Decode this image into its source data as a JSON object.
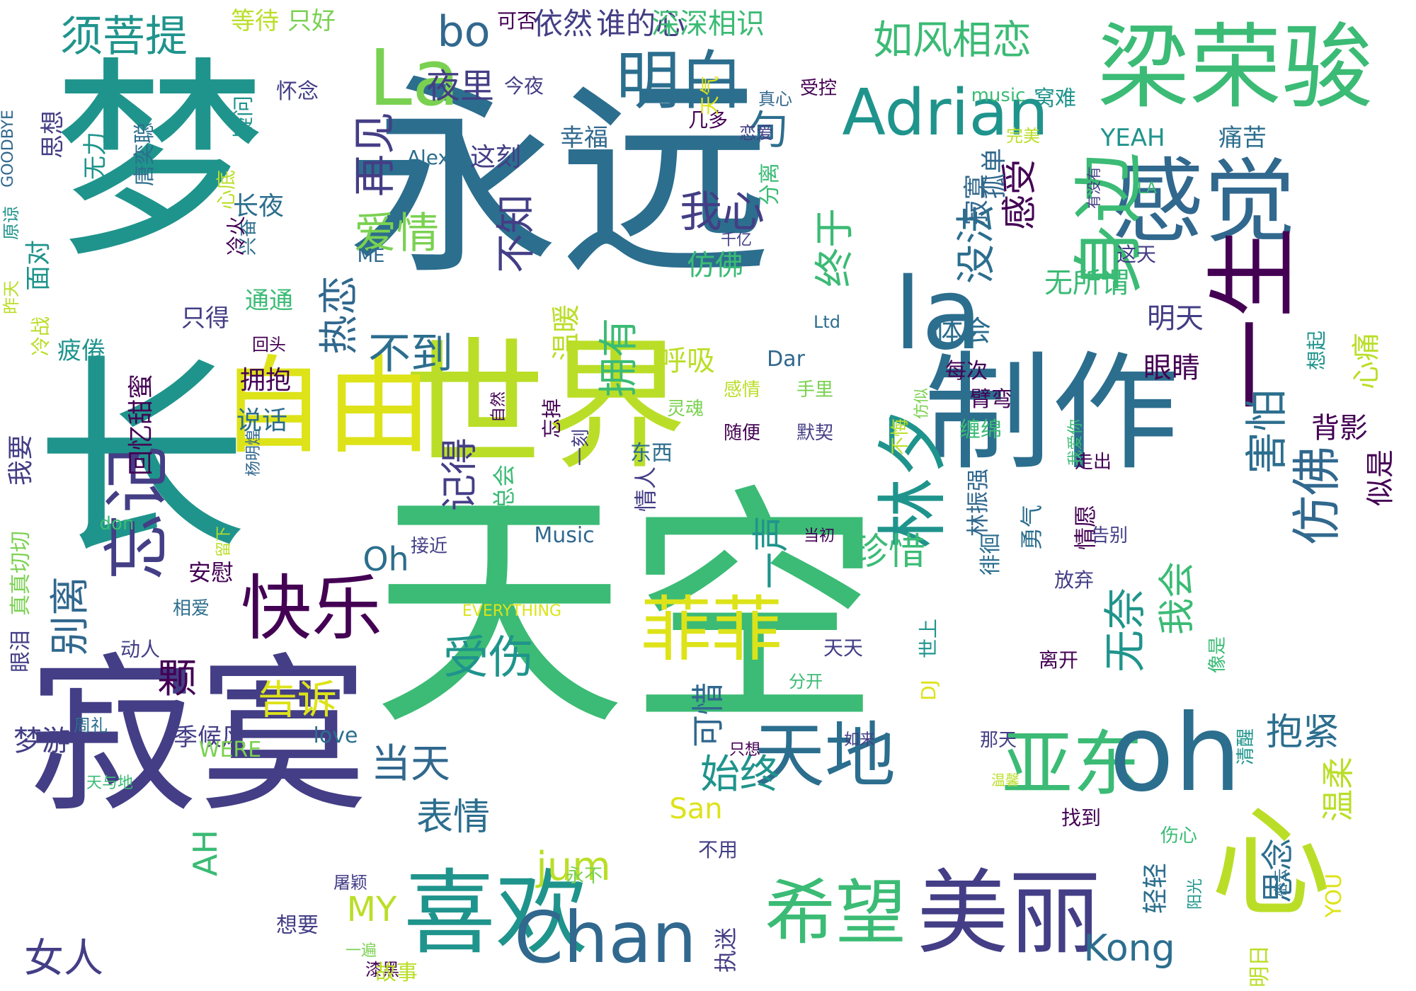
{
  "words": [
    {
      "text": "永远",
      "color": "#2c6e8e",
      "rot": "h"
    },
    {
      "text": "天空",
      "color": "#3bbb75",
      "rot": "h"
    },
    {
      "text": "世界",
      "color": "#bade28",
      "rot": "h"
    },
    {
      "text": "寂寞",
      "color": "#433e85",
      "rot": "h"
    },
    {
      "text": "梦",
      "color": "#1f948c",
      "rot": "h"
    },
    {
      "text": "长",
      "color": "#1f948c",
      "rot": "h"
    },
    {
      "text": "制作",
      "color": "#2c6e8e",
      "rot": "h"
    },
    {
      "text": "梁荣骏",
      "color": "#3bbb75",
      "rot": "h"
    },
    {
      "text": "感觉",
      "color": "#31688e",
      "rot": "h"
    },
    {
      "text": "自由",
      "color": "#dde318",
      "rot": "h"
    },
    {
      "text": "喜欢",
      "color": "#1f948c",
      "rot": "h"
    },
    {
      "text": "美丽",
      "color": "#433e85",
      "rot": "h"
    },
    {
      "text": "希望",
      "color": "#3bbb75",
      "rot": "h"
    },
    {
      "text": "天地",
      "color": "#2c6e8e",
      "rot": "h"
    },
    {
      "text": "亚东",
      "color": "#3bbb75",
      "rot": "h"
    },
    {
      "text": "Chan",
      "color": "#31688e",
      "rot": "h"
    },
    {
      "text": "快乐",
      "color": "#440154",
      "rot": "h"
    },
    {
      "text": "菲菲",
      "color": "#dde318",
      "rot": "h"
    },
    {
      "text": "Adrian",
      "color": "#1f948c",
      "rot": "h"
    },
    {
      "text": "La",
      "color": "#7ad151",
      "rot": "h"
    },
    {
      "text": "la",
      "color": "#2c6e8e",
      "rot": "h"
    },
    {
      "text": "oh",
      "color": "#2c6e8e",
      "rot": "h"
    },
    {
      "text": "心",
      "color": "#bade28",
      "rot": "h"
    },
    {
      "text": "一生",
      "color": "#440154",
      "rot": "v"
    },
    {
      "text": "身边",
      "color": "#3bbb75",
      "rot": "v"
    },
    {
      "text": "林夕",
      "color": "#1f948c",
      "rot": "v"
    },
    {
      "text": "忘记",
      "color": "#433e85",
      "rot": "v"
    },
    {
      "text": "明白",
      "color": "#2c6e8e",
      "rot": "h"
    },
    {
      "text": "如风相恋",
      "color": "#3bbb75",
      "rot": "h"
    },
    {
      "text": "须菩提",
      "color": "#1f948c",
      "rot": "h"
    },
    {
      "text": "bo",
      "color": "#31688e",
      "rot": "h"
    },
    {
      "text": "夜里",
      "color": "#433e85",
      "rot": "h"
    },
    {
      "text": "依然",
      "color": "#433e85",
      "rot": "h"
    },
    {
      "text": "谁的心",
      "color": "#433e85",
      "rot": "h"
    },
    {
      "text": "深深相识",
      "color": "#3bbb75",
      "rot": "h"
    },
    {
      "text": "等待",
      "color": "#bade28",
      "rot": "h"
    },
    {
      "text": "只好",
      "color": "#7ad151",
      "rot": "h"
    },
    {
      "text": "可否",
      "color": "#440154",
      "rot": "h"
    },
    {
      "text": "再见",
      "color": "#433e85",
      "rot": "v"
    },
    {
      "text": "我心",
      "color": "#433e85",
      "rot": "h"
    },
    {
      "text": "爱情",
      "color": "#7ad151",
      "rot": "h"
    },
    {
      "text": "不知",
      "color": "#433e85",
      "rot": "v"
    },
    {
      "text": "热恋",
      "color": "#31688e",
      "rot": "v"
    },
    {
      "text": "不到",
      "color": "#2c6e8e",
      "rot": "h"
    },
    {
      "text": "终于",
      "color": "#3bbb75",
      "rot": "v"
    },
    {
      "text": "没法",
      "color": "#2c6e8e",
      "rot": "v"
    },
    {
      "text": "感受",
      "color": "#440154",
      "rot": "v"
    },
    {
      "text": "拥有",
      "color": "#3bbb75",
      "rot": "v"
    },
    {
      "text": "温暖",
      "color": "#bade28",
      "rot": "v"
    },
    {
      "text": "一声",
      "color": "#1f948c",
      "rot": "v"
    },
    {
      "text": "记得",
      "color": "#433e85",
      "rot": "v"
    },
    {
      "text": "珍惜",
      "color": "#3bbb75",
      "rot": "h"
    },
    {
      "text": "仿佛",
      "color": "#31688e",
      "rot": "v"
    },
    {
      "text": "害怕",
      "color": "#2c6e8e",
      "rot": "v"
    },
    {
      "text": "无奈",
      "color": "#1f948c",
      "rot": "v"
    },
    {
      "text": "我会",
      "color": "#3bbb75",
      "rot": "v"
    },
    {
      "text": "受伤",
      "color": "#1f948c",
      "rot": "h"
    },
    {
      "text": "告诉",
      "color": "#dde318",
      "rot": "h"
    },
    {
      "text": "别离",
      "color": "#31688e",
      "rot": "v"
    },
    {
      "text": "颗",
      "color": "#440154",
      "rot": "h"
    },
    {
      "text": "当天",
      "color": "#31688e",
      "rot": "h"
    },
    {
      "text": "始终",
      "color": "#1f948c",
      "rot": "h"
    },
    {
      "text": "可惜",
      "color": "#31688e",
      "rot": "v"
    },
    {
      "text": "表情",
      "color": "#2c6e8e",
      "rot": "h"
    },
    {
      "text": "抱紧",
      "color": "#2c6e8e",
      "rot": "h"
    },
    {
      "text": "温柔",
      "color": "#bade28",
      "rot": "v"
    },
    {
      "text": "思念",
      "color": "#2c6e8e",
      "rot": "v"
    },
    {
      "text": "女人",
      "color": "#433e85",
      "rot": "h"
    },
    {
      "text": "Kong",
      "color": "#2c6e8e",
      "rot": "h"
    },
    {
      "text": "MY",
      "color": "#bade28",
      "rot": "h"
    },
    {
      "text": "jum",
      "color": "#bade28",
      "rot": "h"
    },
    {
      "text": "AH",
      "color": "#3bbb75",
      "rot": "v"
    },
    {
      "text": "Oh",
      "color": "#2c6e8e",
      "rot": "h"
    },
    {
      "text": "Alex",
      "color": "#2c6e8e",
      "rot": "h"
    },
    {
      "text": "这刻",
      "color": "#433e85",
      "rot": "h"
    },
    {
      "text": "幸福",
      "color": "#31688e",
      "rot": "h"
    },
    {
      "text": "YEAH",
      "color": "#1f948c",
      "rot": "h"
    },
    {
      "text": "痛苦",
      "color": "#2c6e8e",
      "rot": "h"
    },
    {
      "text": "句",
      "color": "#2c6e8e",
      "rot": "h"
    },
    {
      "text": "孤单",
      "color": "#31688e",
      "rot": "v"
    },
    {
      "text": "寂寞2",
      "color": "#31688e",
      "rot": "v"
    },
    {
      "text": "体会",
      "color": "#2c6e8e",
      "rot": "h"
    },
    {
      "text": "眼睛",
      "color": "#440154",
      "rot": "h"
    },
    {
      "text": "心痛",
      "color": "#bade28",
      "rot": "v"
    },
    {
      "text": "背影",
      "color": "#440154",
      "rot": "h"
    },
    {
      "text": "似是",
      "color": "#440154",
      "rot": "v"
    },
    {
      "text": "想起",
      "color": "#1f948c",
      "rot": "v"
    },
    {
      "text": "明天",
      "color": "#433e85",
      "rot": "h"
    },
    {
      "text": "无所谓",
      "color": "#3bbb75",
      "rot": "h"
    },
    {
      "text": "这天",
      "color": "#433e85",
      "rot": "h"
    },
    {
      "text": "有没有",
      "color": "#433e85",
      "rot": "v"
    },
    {
      "text": "呼吸",
      "color": "#bade28",
      "rot": "h"
    },
    {
      "text": "仿佛2",
      "color": "#3bbb75",
      "rot": "h"
    },
    {
      "text": "拥抱",
      "color": "#440154",
      "rot": "h"
    },
    {
      "text": "回忆甜蜜",
      "color": "#440154",
      "rot": "v"
    },
    {
      "text": "说话",
      "color": "#2c6e8e",
      "rot": "h"
    },
    {
      "text": "我要",
      "color": "#433e85",
      "rot": "v"
    },
    {
      "text": "疲倦",
      "color": "#1f948c",
      "rot": "h"
    },
    {
      "text": "冷战",
      "color": "#bade28",
      "rot": "v"
    },
    {
      "text": "只得",
      "color": "#433e85",
      "rot": "h"
    },
    {
      "text": "通通",
      "color": "#3bbb75",
      "rot": "h"
    },
    {
      "text": "长夜",
      "color": "#2c6e8e",
      "rot": "h"
    },
    {
      "text": "面对",
      "color": "#1f948c",
      "rot": "v"
    },
    {
      "text": "疑问",
      "color": "#1f948c",
      "rot": "v"
    },
    {
      "text": "怀念",
      "color": "#433e85",
      "rot": "h"
    },
    {
      "text": "唐奕聪",
      "color": "#2c6e8e",
      "rot": "v"
    },
    {
      "text": "无力",
      "color": "#1f948c",
      "rot": "v"
    },
    {
      "text": "思想",
      "color": "#433e85",
      "rot": "v"
    },
    {
      "text": "GOODBYE",
      "color": "#31688e",
      "rot": "v"
    },
    {
      "text": "真心",
      "color": "#31688e",
      "rot": "h"
    },
    {
      "text": "完美",
      "color": "#bade28",
      "rot": "h"
    },
    {
      "text": "几多",
      "color": "#440154",
      "rot": "h"
    },
    {
      "text": "今夜",
      "color": "#433e85",
      "rot": "h"
    },
    {
      "text": "music",
      "color": "#3bbb75",
      "rot": "h"
    },
    {
      "text": "受控",
      "color": "#440154",
      "rot": "h"
    },
    {
      "text": "恋爱",
      "color": "#433e85",
      "rot": "h"
    },
    {
      "text": "窝难",
      "color": "#1f948c",
      "rot": "h"
    },
    {
      "text": "LA",
      "color": "#3bbb75",
      "rot": "h"
    },
    {
      "text": "天气",
      "color": "#dde318",
      "rot": "v"
    },
    {
      "text": "分离",
      "color": "#3bbb75",
      "rot": "v"
    },
    {
      "text": "千亿",
      "color": "#433e85",
      "rot": "h"
    },
    {
      "text": "兴奋",
      "color": "#2c6e8e",
      "rot": "v"
    },
    {
      "text": "心底",
      "color": "#bade28",
      "rot": "v"
    },
    {
      "text": "冷火",
      "color": "#440154",
      "rot": "v"
    },
    {
      "text": "原谅",
      "color": "#1f948c",
      "rot": "v"
    },
    {
      "text": "昨天",
      "color": "#bade28",
      "rot": "v"
    },
    {
      "text": "回头",
      "color": "#440154",
      "rot": "h"
    },
    {
      "text": "ME",
      "color": "#31688e",
      "rot": "h"
    },
    {
      "text": "Ltd",
      "color": "#2c6e8e",
      "rot": "h"
    },
    {
      "text": "Dar",
      "color": "#31688e",
      "rot": "h"
    },
    {
      "text": "每次",
      "color": "#440154",
      "rot": "h"
    },
    {
      "text": "臂弯",
      "color": "#440154",
      "rot": "h"
    },
    {
      "text": "缠绵",
      "color": "#3bbb75",
      "rot": "h"
    },
    {
      "text": "自然",
      "color": "#440154",
      "rot": "v"
    },
    {
      "text": "忘掉",
      "color": "#440154",
      "rot": "v"
    },
    {
      "text": "感情",
      "color": "#bade28",
      "rot": "h"
    },
    {
      "text": "手里",
      "color": "#7ad151",
      "rot": "h"
    },
    {
      "text": "随便",
      "color": "#440154",
      "rot": "h"
    },
    {
      "text": "默契",
      "color": "#433e85",
      "rot": "h"
    },
    {
      "text": "灵魂",
      "color": "#7ad151",
      "rot": "h"
    },
    {
      "text": "东西",
      "color": "#2c6e8e",
      "rot": "h"
    },
    {
      "text": "一刻",
      "color": "#433e85",
      "rot": "v"
    },
    {
      "text": "不悔",
      "color": "#bade28",
      "rot": "v"
    },
    {
      "text": "仿似",
      "color": "#7ad151",
      "rot": "v"
    },
    {
      "text": "走出",
      "color": "#440154",
      "rot": "h"
    },
    {
      "text": "我爱你",
      "color": "#3bbb75",
      "rot": "v"
    },
    {
      "text": "总会",
      "color": "#3bbb75",
      "rot": "v"
    },
    {
      "text": "情人",
      "color": "#433e85",
      "rot": "v"
    },
    {
      "text": "林振强",
      "color": "#31688e",
      "rot": "v"
    },
    {
      "text": "勇气",
      "color": "#2c6e8e",
      "rot": "v"
    },
    {
      "text": "情愿",
      "color": "#440154",
      "rot": "v"
    },
    {
      "text": "告别",
      "color": "#433e85",
      "rot": "h"
    },
    {
      "text": "留下",
      "color": "#bade28",
      "rot": "v"
    },
    {
      "text": "杨明煌",
      "color": "#31688e",
      "rot": "v"
    },
    {
      "text": "当初",
      "color": "#440154",
      "rot": "h"
    },
    {
      "text": "安慰",
      "color": "#440154",
      "rot": "h"
    },
    {
      "text": "真真切切",
      "color": "#7ad151",
      "rot": "v"
    },
    {
      "text": "don",
      "color": "#3bbb75",
      "rot": "h"
    },
    {
      "text": "Music",
      "color": "#31688e",
      "rot": "h"
    },
    {
      "text": "接近",
      "color": "#433e85",
      "rot": "h"
    },
    {
      "text": "徘徊",
      "color": "#2c6e8e",
      "rot": "v"
    },
    {
      "text": "放弃",
      "color": "#433e85",
      "rot": "h"
    },
    {
      "text": "相爱",
      "color": "#2c6e8e",
      "rot": "h"
    },
    {
      "text": "EVERYTHING",
      "color": "#dde318",
      "rot": "h"
    },
    {
      "text": "世上",
      "color": "#1f948c",
      "rot": "v"
    },
    {
      "text": "DJ",
      "color": "#dde318",
      "rot": "v"
    },
    {
      "text": "天天",
      "color": "#433e85",
      "rot": "h"
    },
    {
      "text": "离开",
      "color": "#440154",
      "rot": "h"
    },
    {
      "text": "像是",
      "color": "#3bbb75",
      "rot": "v"
    },
    {
      "text": "眼泪",
      "color": "#433e85",
      "rot": "v"
    },
    {
      "text": "动人",
      "color": "#433e85",
      "rot": "h"
    },
    {
      "text": "分开",
      "color": "#3bbb75",
      "rot": "h"
    },
    {
      "text": "周礼",
      "color": "#2c6e8e",
      "rot": "h"
    },
    {
      "text": "梦游",
      "color": "#433e85",
      "rot": "h"
    },
    {
      "text": "季候风",
      "color": "#433e85",
      "rot": "h"
    },
    {
      "text": "WERE",
      "color": "#7ad151",
      "rot": "h"
    },
    {
      "text": "love",
      "color": "#2c6e8e",
      "rot": "h"
    },
    {
      "text": "如来",
      "color": "#433e85",
      "rot": "h"
    },
    {
      "text": "那天",
      "color": "#433e85",
      "rot": "h"
    },
    {
      "text": "清醒",
      "color": "#1f948c",
      "rot": "v"
    },
    {
      "text": "只想",
      "color": "#440154",
      "rot": "h"
    },
    {
      "text": "温馨",
      "color": "#bade28",
      "rot": "h"
    },
    {
      "text": "天与地",
      "color": "#3bbb75",
      "rot": "h"
    },
    {
      "text": "San",
      "color": "#dde318",
      "rot": "h"
    },
    {
      "text": "找到",
      "color": "#440154",
      "rot": "h"
    },
    {
      "text": "不用",
      "color": "#433e85",
      "rot": "h"
    },
    {
      "text": "永不",
      "color": "#7ad151",
      "rot": "h"
    },
    {
      "text": "伤心",
      "color": "#3bbb75",
      "rot": "h"
    },
    {
      "text": "阳光",
      "color": "#1f948c",
      "rot": "v"
    },
    {
      "text": "密云",
      "color": "#2c6e8e",
      "rot": "v"
    },
    {
      "text": "屠颖",
      "color": "#433e85",
      "rot": "h"
    },
    {
      "text": "轻轻",
      "color": "#2c6e8e",
      "rot": "v"
    },
    {
      "text": "YOU",
      "color": "#dde318",
      "rot": "v"
    },
    {
      "text": "明日",
      "color": "#bade28",
      "rot": "v"
    },
    {
      "text": "想要",
      "color": "#433e85",
      "rot": "h"
    },
    {
      "text": "一遍",
      "color": "#7ad151",
      "rot": "h"
    },
    {
      "text": "漆黑",
      "color": "#440154",
      "rot": "h"
    },
    {
      "text": "故事",
      "color": "#bade28",
      "rot": "h"
    },
    {
      "text": "执迷",
      "color": "#433e85",
      "rot": "v"
    }
  ]
}
